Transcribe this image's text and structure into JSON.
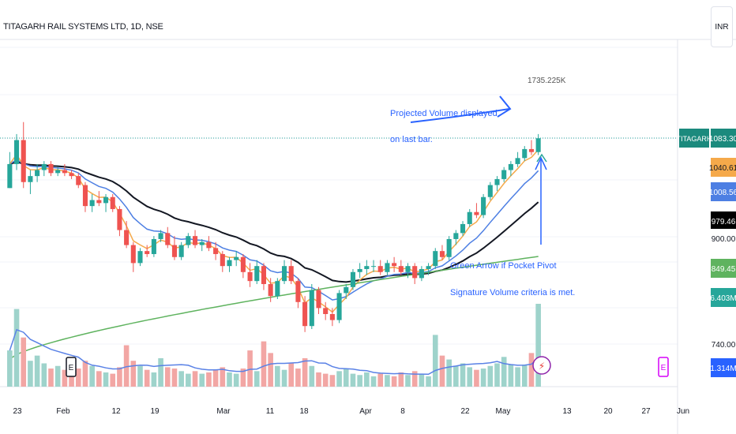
{
  "header": {
    "symbol_title": "TITAGARH RAIL SYSTEMS LTD, 1D, NSE",
    "currency": "INR"
  },
  "colors": {
    "up": "#26a69a",
    "down": "#ef5350",
    "vol_up": "#9ed3cb",
    "vol_down": "#f2a6a4",
    "ema_fast": "#f5a94a",
    "ema_mid": "#4d7fe3",
    "ema_slow": "#131722",
    "sma_long": "#5fb35f",
    "vol_ma": "#5a82e6",
    "annot": "#2962ff",
    "earn": "#d500f9"
  },
  "chart_data": {
    "type": "candlestick",
    "date_ticks": [
      "23",
      "Feb",
      "12",
      "19",
      "Mar",
      "11",
      "18",
      "Apr",
      "8",
      "22",
      "May",
      "13",
      "20",
      "27",
      "Jun"
    ],
    "price_labels": [
      {
        "name": "TITAGARH",
        "value": "1083.30",
        "color": "#1b8a7d"
      },
      {
        "value": "1040.61",
        "color": "#f5a94a"
      },
      {
        "value": "1008.56",
        "color": "#4d7fe3"
      },
      {
        "value": "979.46",
        "color": "#000000"
      },
      {
        "value": "900.00",
        "color": "#ffffff"
      },
      {
        "value": "849.45",
        "color": "#5fb35f"
      },
      {
        "value": "6.403M",
        "color": "#26a69a"
      },
      {
        "value": "740.00",
        "color": "#ffffff"
      },
      {
        "value": "1.314M",
        "color": "#2962ff"
      }
    ],
    "projected_volume_label": "1735.225K",
    "annotations": [
      {
        "text": "Projected Volume displayed",
        "text2": "on last bar."
      },
      {
        "text": "Green Arrow if Pocket Pivot",
        "text2": "Signature Volume criteria is met."
      }
    ],
    "earnings_marker": "E",
    "pocket_pivot_marker": "⚡",
    "candles": [
      [
        1000,
        1060,
        1000,
        1040
      ],
      [
        1040,
        1090,
        1030,
        1080
      ],
      [
        1080,
        1110,
        1000,
        1010
      ],
      [
        1010,
        1030,
        990,
        1020
      ],
      [
        1020,
        1040,
        1010,
        1030
      ],
      [
        1030,
        1045,
        1020,
        1040
      ],
      [
        1040,
        1045,
        1020,
        1025
      ],
      [
        1025,
        1035,
        1020,
        1030
      ],
      [
        1030,
        1040,
        1020,
        1025
      ],
      [
        1025,
        1030,
        1015,
        1020
      ],
      [
        1020,
        1025,
        1000,
        1005
      ],
      [
        1005,
        1010,
        960,
        970
      ],
      [
        970,
        990,
        960,
        980
      ],
      [
        980,
        995,
        970,
        975
      ],
      [
        975,
        990,
        960,
        985
      ],
      [
        985,
        990,
        960,
        965
      ],
      [
        965,
        970,
        920,
        930
      ],
      [
        930,
        945,
        900,
        905
      ],
      [
        905,
        910,
        860,
        875
      ],
      [
        875,
        900,
        870,
        895
      ],
      [
        895,
        905,
        885,
        890
      ],
      [
        890,
        920,
        885,
        915
      ],
      [
        915,
        930,
        910,
        925
      ],
      [
        925,
        935,
        900,
        905
      ],
      [
        905,
        920,
        880,
        885
      ],
      [
        885,
        910,
        880,
        905
      ],
      [
        905,
        925,
        900,
        920
      ],
      [
        920,
        930,
        900,
        905
      ],
      [
        905,
        915,
        895,
        910
      ],
      [
        910,
        920,
        895,
        900
      ],
      [
        900,
        910,
        880,
        890
      ],
      [
        890,
        895,
        860,
        870
      ],
      [
        870,
        885,
        860,
        880
      ],
      [
        880,
        895,
        870,
        885
      ],
      [
        885,
        890,
        850,
        860
      ],
      [
        860,
        875,
        835,
        845
      ],
      [
        845,
        880,
        840,
        870
      ],
      [
        870,
        875,
        830,
        840
      ],
      [
        840,
        850,
        810,
        820
      ],
      [
        820,
        850,
        815,
        845
      ],
      [
        845,
        880,
        840,
        870
      ],
      [
        870,
        880,
        840,
        845
      ],
      [
        845,
        850,
        800,
        810
      ],
      [
        810,
        820,
        760,
        770
      ],
      [
        770,
        840,
        765,
        830
      ],
      [
        830,
        835,
        790,
        800
      ],
      [
        800,
        810,
        780,
        790
      ],
      [
        790,
        800,
        770,
        780
      ],
      [
        780,
        830,
        775,
        825
      ],
      [
        825,
        840,
        815,
        835
      ],
      [
        835,
        865,
        830,
        860
      ],
      [
        860,
        875,
        850,
        865
      ],
      [
        865,
        880,
        855,
        870
      ],
      [
        870,
        880,
        860,
        870
      ],
      [
        870,
        880,
        855,
        860
      ],
      [
        860,
        880,
        855,
        875
      ],
      [
        875,
        885,
        860,
        870
      ],
      [
        870,
        880,
        855,
        860
      ],
      [
        860,
        875,
        850,
        870
      ],
      [
        870,
        875,
        840,
        850
      ],
      [
        850,
        870,
        845,
        865
      ],
      [
        865,
        875,
        855,
        870
      ],
      [
        870,
        900,
        865,
        895
      ],
      [
        895,
        905,
        880,
        885
      ],
      [
        885,
        920,
        880,
        915
      ],
      [
        915,
        930,
        905,
        925
      ],
      [
        925,
        945,
        920,
        940
      ],
      [
        940,
        965,
        935,
        960
      ],
      [
        960,
        975,
        950,
        955
      ],
      [
        955,
        990,
        950,
        985
      ],
      [
        985,
        1010,
        980,
        1005
      ],
      [
        1005,
        1020,
        995,
        1015
      ],
      [
        1015,
        1035,
        1010,
        1030
      ],
      [
        1030,
        1045,
        1020,
        1040
      ],
      [
        1040,
        1060,
        1035,
        1050
      ],
      [
        1050,
        1070,
        1045,
        1065
      ],
      [
        1065,
        1080,
        1055,
        1060
      ],
      [
        1060,
        1090,
        1055,
        1083
      ]
    ],
    "volume_millions": [
      2.8,
      6.0,
      3.8,
      2.0,
      2.4,
      1.8,
      1.4,
      1.6,
      1.3,
      1.1,
      1.4,
      2.0,
      1.6,
      1.2,
      1.1,
      1.0,
      1.5,
      3.2,
      2.0,
      1.6,
      1.3,
      1.1,
      2.2,
      1.5,
      1.4,
      1.2,
      1.0,
      1.2,
      1.0,
      1.1,
      1.3,
      1.5,
      1.1,
      1.0,
      1.4,
      2.8,
      1.2,
      3.5,
      2.6,
      1.6,
      1.3,
      1.8,
      1.4,
      2.2,
      1.6,
      1.1,
      1.0,
      0.9,
      1.2,
      1.4,
      1.0,
      0.9,
      1.1,
      0.8,
      1.0,
      0.9,
      0.8,
      1.1,
      0.9,
      1.2,
      1.0,
      0.8,
      4.0,
      2.4,
      2.1,
      1.6,
      1.8,
      1.5,
      1.3,
      1.4,
      1.6,
      1.8,
      2.3,
      1.7,
      1.5,
      1.7,
      2.6,
      6.403
    ],
    "volume_up": [
      1,
      1,
      0,
      1,
      1,
      1,
      0,
      1,
      0,
      0,
      0,
      0,
      1,
      0,
      1,
      0,
      0,
      0,
      0,
      1,
      0,
      1,
      1,
      0,
      0,
      1,
      1,
      0,
      1,
      0,
      0,
      0,
      1,
      1,
      0,
      0,
      1,
      0,
      0,
      1,
      1,
      0,
      0,
      0,
      1,
      0,
      0,
      0,
      1,
      1,
      1,
      1,
      1,
      1,
      0,
      1,
      0,
      0,
      1,
      0,
      1,
      1,
      1,
      0,
      1,
      1,
      1,
      1,
      0,
      1,
      1,
      1,
      1,
      1,
      1,
      1,
      0,
      1
    ]
  }
}
